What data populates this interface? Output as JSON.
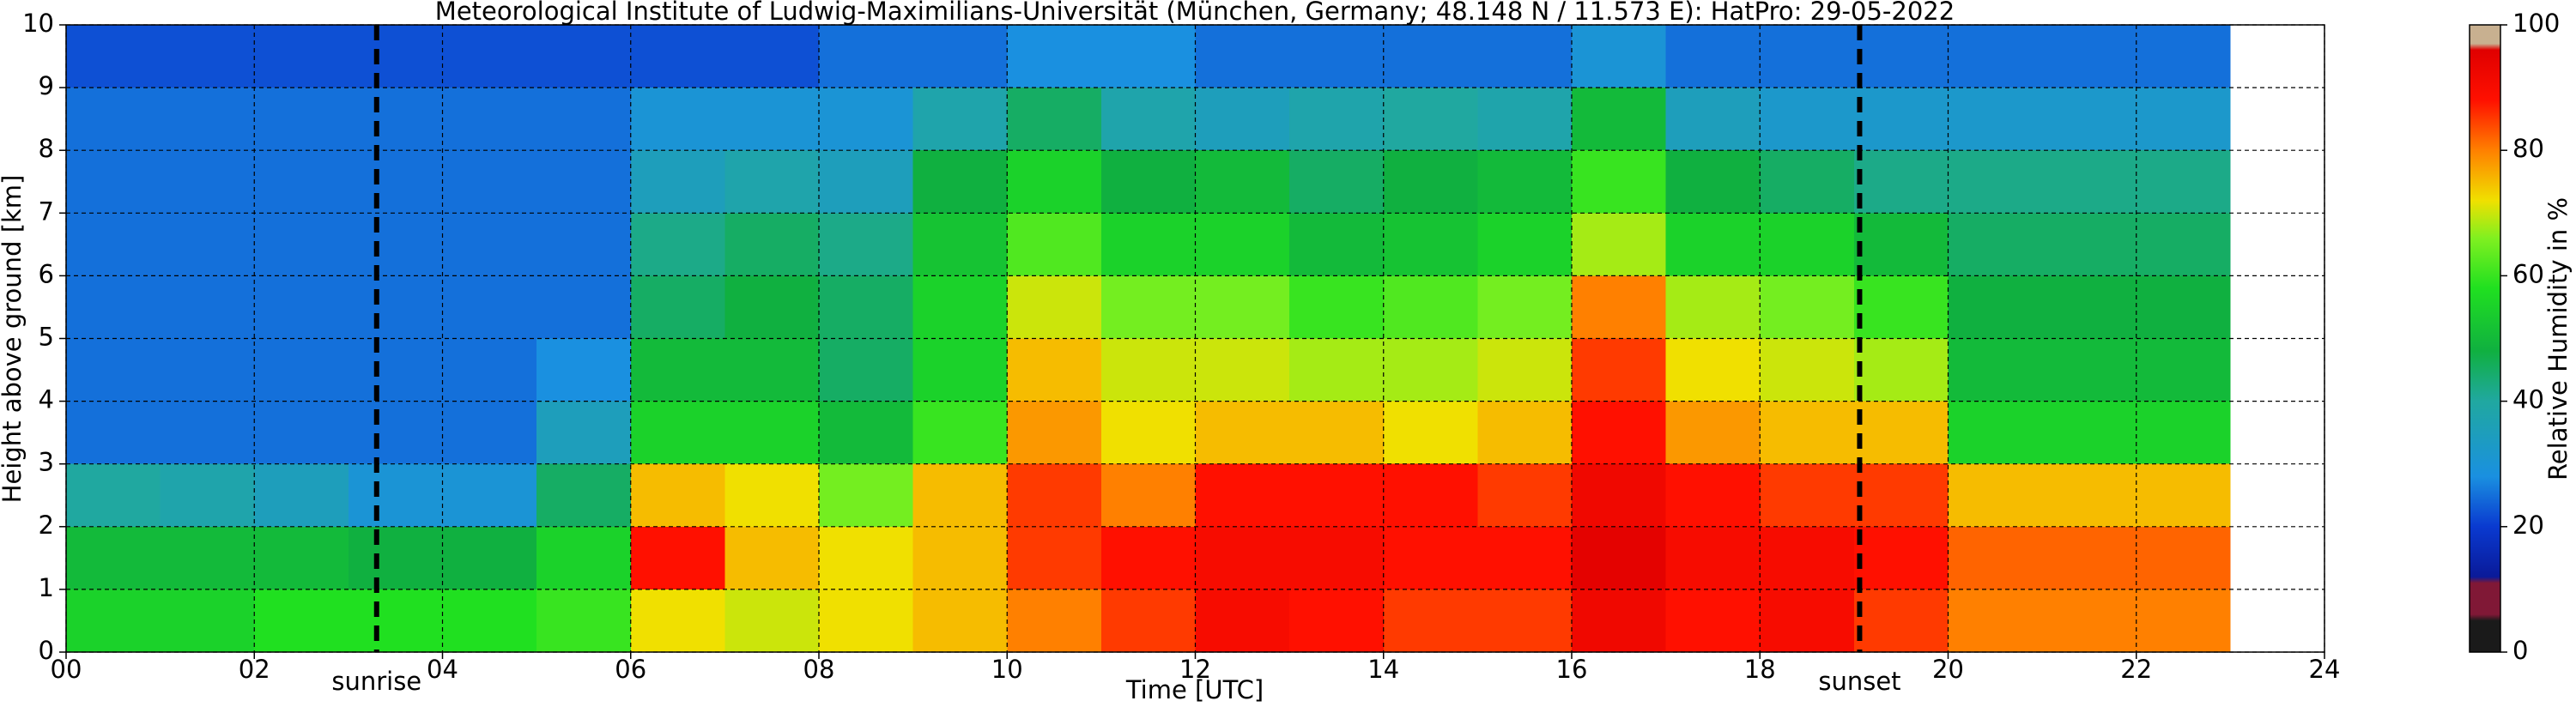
{
  "chart_data": {
    "type": "heatmap",
    "title": "Meteorological Institute of Ludwig-Maximilians-Universität (München, Germany; 48.148 N / 11.573 E):    HatPro: 29-05-2022",
    "xlabel": "Time [UTC]",
    "ylabel": "Height above ground [km]",
    "xlim": [
      0,
      24
    ],
    "ylim": [
      0,
      10
    ],
    "xticks": [
      {
        "value": 0,
        "label": "00"
      },
      {
        "value": 2,
        "label": "02"
      },
      {
        "value": 4,
        "label": "04"
      },
      {
        "value": 6,
        "label": "06"
      },
      {
        "value": 8,
        "label": "08"
      },
      {
        "value": 10,
        "label": "10"
      },
      {
        "value": 12,
        "label": "12"
      },
      {
        "value": 14,
        "label": "14"
      },
      {
        "value": 16,
        "label": "16"
      },
      {
        "value": 18,
        "label": "18"
      },
      {
        "value": 20,
        "label": "20"
      },
      {
        "value": 22,
        "label": "22"
      },
      {
        "value": 24,
        "label": "24"
      }
    ],
    "yticks": [
      0,
      1,
      2,
      3,
      4,
      5,
      6,
      7,
      8,
      9,
      10
    ],
    "grid": true,
    "x": [
      0,
      1,
      2,
      3,
      4,
      5,
      6,
      7,
      8,
      9,
      10,
      11,
      12,
      13,
      14,
      15,
      16,
      17,
      18,
      19,
      20,
      21,
      22,
      23
    ],
    "y": [
      0,
      1,
      2,
      3,
      4,
      5,
      6,
      7,
      8,
      9,
      10
    ],
    "z": [
      [
        55,
        55,
        58,
        58,
        58,
        60,
        72,
        70,
        72,
        75,
        80,
        85,
        90,
        88,
        85,
        85,
        92,
        88,
        90,
        85,
        80,
        80,
        80
      ],
      [
        50,
        50,
        50,
        48,
        48,
        55,
        88,
        75,
        72,
        75,
        85,
        88,
        90,
        90,
        88,
        88,
        95,
        90,
        90,
        88,
        82,
        82,
        82
      ],
      [
        40,
        38,
        35,
        30,
        30,
        45,
        75,
        72,
        65,
        75,
        85,
        80,
        88,
        88,
        88,
        85,
        92,
        88,
        85,
        85,
        75,
        75,
        75
      ],
      [
        25,
        25,
        25,
        25,
        25,
        35,
        55,
        55,
        50,
        60,
        78,
        72,
        75,
        75,
        72,
        75,
        88,
        78,
        75,
        75,
        55,
        55,
        55
      ],
      [
        25,
        25,
        25,
        25,
        25,
        28,
        50,
        50,
        45,
        55,
        75,
        70,
        70,
        68,
        68,
        70,
        85,
        72,
        70,
        68,
        50,
        50,
        50
      ],
      [
        25,
        25,
        25,
        25,
        25,
        25,
        45,
        48,
        45,
        55,
        70,
        65,
        65,
        60,
        62,
        65,
        80,
        68,
        65,
        60,
        48,
        48,
        48
      ],
      [
        25,
        25,
        25,
        25,
        25,
        25,
        42,
        45,
        42,
        52,
        62,
        55,
        55,
        50,
        52,
        55,
        68,
        55,
        55,
        50,
        45,
        45,
        45
      ],
      [
        25,
        25,
        25,
        25,
        25,
        25,
        35,
        38,
        35,
        48,
        55,
        48,
        50,
        45,
        48,
        50,
        60,
        48,
        45,
        42,
        42,
        42,
        42
      ],
      [
        25,
        25,
        25,
        25,
        25,
        25,
        30,
        30,
        30,
        38,
        45,
        38,
        35,
        38,
        40,
        38,
        50,
        35,
        32,
        32,
        32,
        32,
        32
      ],
      [
        22,
        22,
        22,
        22,
        22,
        22,
        22,
        22,
        25,
        25,
        28,
        28,
        25,
        25,
        25,
        25,
        30,
        25,
        25,
        25,
        25,
        25,
        25
      ]
    ],
    "annotations": [
      {
        "x": 3.3,
        "label": "sunrise"
      },
      {
        "x": 19.06,
        "label": "sunset"
      }
    ],
    "colorbar": {
      "label": "Relative Humidity in %",
      "lim": [
        0,
        100
      ],
      "ticks": [
        0,
        20,
        40,
        60,
        80,
        100
      ],
      "stops": [
        {
          "value": 0,
          "color": "#1a1a1a"
        },
        {
          "value": 5,
          "color": "#1a1a1a"
        },
        {
          "value": 6,
          "color": "#801836"
        },
        {
          "value": 11,
          "color": "#801836"
        },
        {
          "value": 12,
          "color": "#0a1a99"
        },
        {
          "value": 20,
          "color": "#0a3ad0"
        },
        {
          "value": 28,
          "color": "#1a90e0"
        },
        {
          "value": 40,
          "color": "#20a8a0"
        },
        {
          "value": 48,
          "color": "#10b040"
        },
        {
          "value": 58,
          "color": "#20e020"
        },
        {
          "value": 66,
          "color": "#80f020"
        },
        {
          "value": 72,
          "color": "#f0e000"
        },
        {
          "value": 80,
          "color": "#ff8000"
        },
        {
          "value": 88,
          "color": "#ff1000"
        },
        {
          "value": 96,
          "color": "#e00000"
        },
        {
          "value": 97,
          "color": "#c8b090"
        },
        {
          "value": 100,
          "color": "#c8b090"
        }
      ]
    }
  }
}
